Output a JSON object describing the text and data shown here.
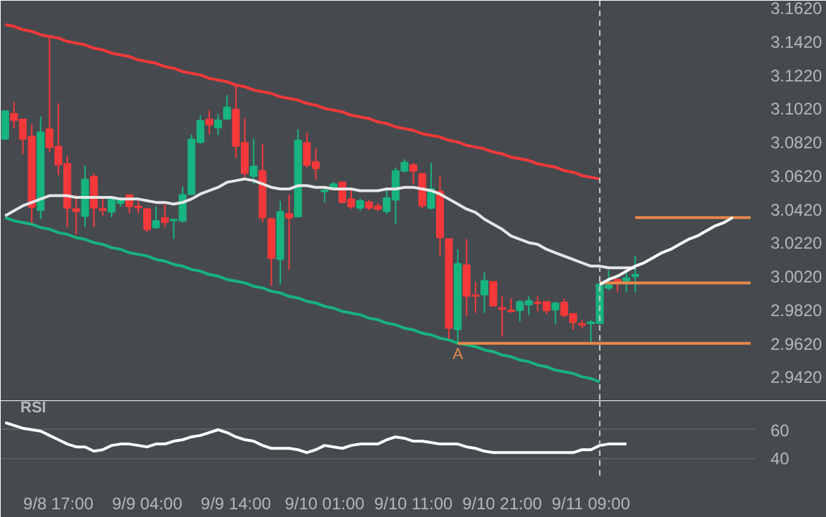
{
  "chart_data": [
    {
      "type": "candlestick",
      "tick_labels": "y",
      "grid": false,
      "categories": [
        null,
        null,
        null,
        null,
        null,
        null,
        null,
        null,
        null,
        null,
        null,
        null,
        null,
        null,
        null,
        null,
        null,
        null,
        null,
        null,
        null,
        null,
        null,
        null,
        null,
        null,
        null,
        null,
        null,
        null,
        null,
        null,
        null,
        null,
        null,
        null,
        null,
        null,
        null,
        null,
        null,
        null,
        null,
        null,
        null,
        null,
        null,
        null,
        null,
        null,
        null,
        null,
        null,
        null,
        null,
        null,
        null,
        null,
        null,
        null,
        null,
        null,
        null,
        null,
        null,
        null,
        null,
        null,
        null,
        null,
        null,
        null,
        null,
        null,
        null,
        null,
        null,
        null,
        null,
        null,
        null,
        null,
        null,
        null,
        null
      ],
      "ohlc": [
        [
          3.0839,
          3.1009,
          3.0839,
          3.1004
        ],
        [
          3.0989,
          3.1058,
          3.0901,
          3.095
        ],
        [
          3.0955,
          3.0955,
          3.0748,
          3.0839
        ],
        [
          3.0853,
          3.0924,
          3.0327,
          3.0432
        ],
        [
          3.0413,
          3.0972,
          3.0361,
          3.0879
        ],
        [
          3.0896,
          3.1456,
          3.0759,
          3.0788
        ],
        [
          3.0793,
          3.1052,
          3.0623,
          3.0685
        ],
        [
          3.0691,
          3.0739,
          3.0313,
          3.0427
        ],
        [
          3.0421,
          3.0506,
          3.027,
          3.0407
        ],
        [
          3.0378,
          3.068,
          3.0313,
          3.0597
        ],
        [
          3.0614,
          3.0631,
          3.0313,
          3.0427
        ],
        [
          3.0421,
          3.0498,
          3.0381,
          3.0413
        ],
        [
          3.0404,
          3.0492,
          3.037,
          3.0481
        ],
        [
          3.0455,
          3.0492,
          3.0435,
          3.0475
        ],
        [
          3.0504,
          3.0504,
          3.0395,
          3.0435
        ],
        [
          3.0435,
          3.0481,
          3.0395,
          3.0429
        ],
        [
          3.0421,
          3.0421,
          3.0285,
          3.0299
        ],
        [
          3.031,
          3.0435,
          3.0304,
          3.035
        ],
        [
          3.0367,
          3.045,
          3.0313,
          3.0341
        ],
        [
          3.0353,
          3.0358,
          3.0242,
          3.0358
        ],
        [
          3.035,
          3.0555,
          3.0341,
          3.0506
        ],
        [
          3.0509,
          3.0867,
          3.0504,
          3.0836
        ],
        [
          3.0819,
          3.0981,
          3.081,
          3.0947
        ],
        [
          3.0955,
          3.1009,
          3.0867,
          3.0924
        ],
        [
          3.0907,
          3.0987,
          3.0862,
          3.095
        ],
        [
          3.0958,
          3.11,
          3.0952,
          3.1026
        ],
        [
          3.1015,
          3.116,
          3.0725,
          3.0796
        ],
        [
          3.0816,
          3.0961,
          3.0611,
          3.0634
        ],
        [
          3.0617,
          3.0839,
          3.0569,
          3.0674
        ],
        [
          3.0648,
          3.081,
          3.0341,
          3.037
        ],
        [
          3.0361,
          3.037,
          2.9963,
          3.0128
        ],
        [
          3.012,
          3.0469,
          2.9972,
          3.0404
        ],
        [
          3.0393,
          3.0506,
          3.0057,
          3.037
        ],
        [
          3.0376,
          3.0896,
          3.037,
          3.083
        ],
        [
          3.0816,
          3.0876,
          3.0668,
          3.0683
        ],
        [
          3.0702,
          3.0782,
          3.0597,
          3.0663
        ],
        [
          3.0526,
          3.0546,
          3.0461,
          3.0532
        ],
        [
          3.054,
          3.0583,
          3.0532,
          3.0569
        ],
        [
          3.058,
          3.058,
          3.0455,
          3.0461
        ],
        [
          3.0478,
          3.0535,
          3.0421,
          3.0435
        ],
        [
          3.0427,
          3.0484,
          3.0407,
          3.0469
        ],
        [
          3.0461,
          3.0475,
          3.0413,
          3.0427
        ],
        [
          3.0438,
          3.0455,
          3.0407,
          3.0421
        ],
        [
          3.0407,
          3.054,
          3.039,
          3.0486
        ],
        [
          3.0475,
          3.0668,
          3.0333,
          3.0648
        ],
        [
          3.0648,
          3.0717,
          3.064,
          3.0697
        ],
        [
          3.0683,
          3.0697,
          3.0569,
          3.0648
        ],
        [
          3.0631,
          3.0631,
          3.0427,
          3.0441
        ],
        [
          3.0427,
          3.0697,
          3.0418,
          3.054
        ],
        [
          3.0526,
          3.062,
          3.0142,
          3.0251
        ],
        [
          3.0242,
          3.0242,
          2.9645,
          2.9711
        ],
        [
          2.9702,
          3.0179,
          2.9617,
          3.0094
        ],
        [
          3.0086,
          3.0242,
          2.9782,
          2.9901
        ],
        [
          2.9907,
          2.9986,
          2.9801,
          2.9901
        ],
        [
          2.991,
          3.0043,
          2.9801,
          2.9992
        ],
        [
          2.9986,
          2.9986,
          2.9838,
          2.9844
        ],
        [
          2.983,
          2.9901,
          2.9659,
          2.9824
        ],
        [
          2.9816,
          2.9887,
          2.9801,
          2.981
        ],
        [
          2.9816,
          2.9878,
          2.975,
          2.9867
        ],
        [
          2.985,
          2.9901,
          2.9787,
          2.9873
        ],
        [
          2.9864,
          2.9901,
          2.981,
          2.9858
        ],
        [
          2.9867,
          2.9867,
          2.9793,
          2.9816
        ],
        [
          2.9821,
          2.9867,
          2.9736,
          2.9858
        ],
        [
          2.9864,
          2.9887,
          2.9773,
          2.9787
        ],
        [
          2.9796,
          2.9796,
          2.9702,
          2.9745
        ],
        [
          2.9736,
          2.9759,
          2.9708,
          2.973
        ],
        [
          2.9739,
          2.9759,
          2.9625,
          2.9745
        ],
        [
          2.9739,
          2.9972,
          2.9739,
          2.9972
        ],
        [
          2.9949,
          3.0057,
          2.9935,
          2.9966
        ],
        [
          3.0,
          3.0,
          2.9924,
          2.9986
        ],
        [
          2.9992,
          3.0043,
          2.9924,
          3.0009
        ],
        [
          3.002,
          3.0142,
          2.9924,
          3.0029
        ],
        null,
        null,
        null,
        null,
        null,
        null,
        null,
        null,
        null,
        null,
        null,
        null,
        null
      ],
      "colors": [
        "#17b47f",
        "#f5393a",
        "#f5393a",
        "#f5393a",
        "#17b47f",
        "#f5393a",
        "#f5393a",
        "#f5393a",
        "#f5393a",
        "#17b47f",
        "#f5393a",
        "#f5393a",
        "#17b47f",
        "#17b47f",
        "#f5393a",
        "#f5393a",
        "#f5393a",
        "#17b47f",
        "#f5393a",
        "#17b47f",
        "#17b47f",
        "#17b47f",
        "#17b47f",
        "#f5393a",
        "#17b47f",
        "#17b47f",
        "#f5393a",
        "#f5393a",
        "#17b47f",
        "#f5393a",
        "#f5393a",
        "#17b47f",
        "#f5393a",
        "#17b47f",
        "#f5393a",
        "#f5393a",
        "#17b47f",
        "#17b47f",
        "#f5393a",
        "#f5393a",
        "#17b47f",
        "#f5393a",
        "#f5393a",
        "#17b47f",
        "#17b47f",
        "#17b47f",
        "#f5393a",
        "#f5393a",
        "#17b47f",
        "#f5393a",
        "#f5393a",
        "#17b47f",
        "#f5393a",
        "#f5393a",
        "#17b47f",
        "#f5393a",
        "#f5393a",
        "#f5393a",
        "#17b47f",
        "#17b47f",
        "#f5393a",
        "#f5393a",
        "#17b47f",
        "#f5393a",
        "#f5393a",
        "#f5393a",
        "#17b47f",
        "#17b47f",
        "#17b47f",
        "#f5393a",
        "#17b47f",
        "#17b47f",
        null,
        null,
        null,
        null,
        null,
        null,
        null,
        null,
        null,
        null,
        null,
        null,
        null
      ],
      "series": [
        {
          "type": "line",
          "color": "#f5393a",
          "values": [
            3.152,
            3.151,
            3.149,
            3.148,
            3.146,
            3.145,
            3.144,
            3.142,
            3.141,
            3.14,
            3.138,
            3.137,
            3.135,
            3.134,
            3.133,
            3.131,
            3.13,
            3.129,
            3.127,
            3.126,
            3.124,
            3.123,
            3.122,
            3.12,
            3.119,
            3.118,
            3.116,
            3.115,
            3.113,
            3.112,
            3.111,
            3.109,
            3.108,
            3.107,
            3.105,
            3.104,
            3.102,
            3.101,
            3.1,
            3.098,
            3.097,
            3.096,
            3.094,
            3.093,
            3.091,
            3.09,
            3.089,
            3.087,
            3.086,
            3.085,
            3.083,
            3.082,
            3.08,
            3.079,
            3.078,
            3.076,
            3.075,
            3.073,
            3.072,
            3.071,
            3.069,
            3.068,
            3.067,
            3.065,
            3.064,
            3.062,
            3.061,
            3.06,
            null,
            null,
            null,
            null,
            null,
            null,
            null,
            null,
            null,
            null,
            null,
            null,
            null,
            null,
            null,
            null,
            null
          ]
        },
        {
          "type": "line",
          "color": "#17b47f",
          "values": [
            3.037,
            3.035,
            3.034,
            3.033,
            3.031,
            3.03,
            3.028,
            3.027,
            3.025,
            3.024,
            3.022,
            3.021,
            3.019,
            3.018,
            3.016,
            3.015,
            3.014,
            3.012,
            3.011,
            3.009,
            3.008,
            3.006,
            3.005,
            3.003,
            3.002,
            3.0,
            2.999,
            2.998,
            2.996,
            2.995,
            2.993,
            2.992,
            2.99,
            2.989,
            2.987,
            2.986,
            2.984,
            2.983,
            2.981,
            2.98,
            2.979,
            2.977,
            2.976,
            2.974,
            2.973,
            2.971,
            2.97,
            2.968,
            2.967,
            2.965,
            2.964,
            2.962,
            2.961,
            2.96,
            2.958,
            2.957,
            2.955,
            2.954,
            2.952,
            2.951,
            2.949,
            2.948,
            2.946,
            2.945,
            2.944,
            2.942,
            2.941,
            2.939,
            null,
            null,
            null,
            null,
            null,
            null,
            null,
            null,
            null,
            null,
            null,
            null,
            null,
            null,
            null,
            null,
            null
          ]
        },
        {
          "type": "line",
          "color": "#e6e6e6",
          "values": [
            3.038,
            3.041,
            3.044,
            3.046,
            3.048,
            3.05,
            3.05,
            3.05,
            3.049,
            3.049,
            3.049,
            3.049,
            3.049,
            3.048,
            3.048,
            3.048,
            3.047,
            3.046,
            3.046,
            3.045,
            3.046,
            3.048,
            3.051,
            3.053,
            3.055,
            3.058,
            3.059,
            3.06,
            3.059,
            3.057,
            3.055,
            3.054,
            3.054,
            3.056,
            3.056,
            3.055,
            3.055,
            3.054,
            3.054,
            3.054,
            3.053,
            3.053,
            3.053,
            3.054,
            3.054,
            3.055,
            3.055,
            3.054,
            3.053,
            3.051,
            3.048,
            3.045,
            3.042,
            3.04,
            3.036,
            3.033,
            3.03,
            3.026,
            3.024,
            3.022,
            3.021,
            3.018,
            3.016,
            3.014,
            3.012,
            3.01,
            3.008,
            3.008,
            3.007,
            3.007,
            3.007,
            3.007,
            null,
            null,
            null,
            null,
            null,
            null,
            null,
            null,
            null,
            null,
            null,
            null,
            null
          ]
        },
        {
          "type": "line",
          "color": "#e8884c",
          "values": [
            null,
            null,
            null,
            null,
            null,
            null,
            null,
            null,
            null,
            null,
            null,
            null,
            null,
            null,
            null,
            null,
            null,
            null,
            null,
            null,
            null,
            null,
            null,
            null,
            null,
            null,
            null,
            null,
            null,
            null,
            null,
            null,
            null,
            null,
            null,
            null,
            null,
            null,
            null,
            null,
            null,
            null,
            null,
            null,
            null,
            null,
            null,
            null,
            null,
            null,
            null,
            2.962,
            2.962,
            2.962,
            2.962,
            2.962,
            2.962,
            2.962,
            2.962,
            2.962,
            2.962,
            2.962,
            2.962,
            2.962,
            2.962,
            2.962,
            2.962,
            2.962,
            2.962,
            2.962,
            2.962,
            2.962,
            2.962,
            2.962,
            2.962,
            2.962,
            2.962,
            2.962,
            2.962,
            2.962,
            2.962,
            2.962,
            2.962,
            2.962,
            2.962
          ]
        },
        {
          "type": "line",
          "color": "#e8884c",
          "values": [
            null,
            null,
            null,
            null,
            null,
            null,
            null,
            null,
            null,
            null,
            null,
            null,
            null,
            null,
            null,
            null,
            null,
            null,
            null,
            null,
            null,
            null,
            null,
            null,
            null,
            null,
            null,
            null,
            null,
            null,
            null,
            null,
            null,
            null,
            null,
            null,
            null,
            null,
            null,
            null,
            null,
            null,
            null,
            null,
            null,
            null,
            null,
            null,
            null,
            null,
            null,
            null,
            null,
            null,
            null,
            null,
            null,
            null,
            null,
            null,
            null,
            null,
            null,
            null,
            null,
            null,
            null,
            2.998,
            2.998,
            2.998,
            2.998,
            2.998,
            2.998,
            2.998,
            2.998,
            2.998,
            2.998,
            2.998,
            2.998,
            2.998,
            2.998,
            2.998,
            2.998,
            2.998,
            2.998
          ]
        },
        {
          "type": "line",
          "color": "#e8884c",
          "values": [
            null,
            null,
            null,
            null,
            null,
            null,
            null,
            null,
            null,
            null,
            null,
            null,
            null,
            null,
            null,
            null,
            null,
            null,
            null,
            null,
            null,
            null,
            null,
            null,
            null,
            null,
            null,
            null,
            null,
            null,
            null,
            null,
            null,
            null,
            null,
            null,
            null,
            null,
            null,
            null,
            null,
            null,
            null,
            null,
            null,
            null,
            null,
            null,
            null,
            null,
            null,
            null,
            null,
            null,
            null,
            null,
            null,
            null,
            null,
            null,
            null,
            null,
            null,
            null,
            null,
            null,
            null,
            null,
            null,
            null,
            null,
            3.037,
            3.037,
            3.037,
            3.037,
            3.037,
            3.037,
            3.037,
            3.037,
            3.037,
            3.037,
            3.037,
            3.037,
            3.037,
            3.037
          ]
        },
        {
          "type": "line",
          "color": "#ffffff",
          "values": [
            null,
            null,
            null,
            null,
            null,
            null,
            null,
            null,
            null,
            null,
            null,
            null,
            null,
            null,
            null,
            null,
            null,
            null,
            null,
            null,
            null,
            null,
            null,
            null,
            null,
            null,
            null,
            null,
            null,
            null,
            null,
            null,
            null,
            null,
            null,
            null,
            null,
            null,
            null,
            null,
            null,
            null,
            null,
            null,
            null,
            null,
            null,
            null,
            null,
            null,
            null,
            null,
            null,
            null,
            null,
            null,
            null,
            null,
            null,
            null,
            null,
            null,
            null,
            null,
            null,
            null,
            null,
            2.997,
            3.0,
            3.002,
            3.005,
            3.008,
            3.01,
            3.013,
            3.016,
            3.018,
            3.021,
            3.024,
            3.026,
            3.029,
            3.032,
            3.034,
            3.037,
            null,
            null
          ]
        }
      ],
      "annotations": [
        {
          "text": "A",
          "y": 2.962
        }
      ],
      "ylim": [
        2.9275,
        3.1663
      ],
      "yticks": [
        {
          "value": 3.162,
          "label": "3.1620"
        },
        {
          "value": 3.142,
          "label": "3.1420"
        },
        {
          "value": 3.122,
          "label": "3.1220"
        },
        {
          "value": 3.102,
          "label": "3.1020"
        },
        {
          "value": 3.082,
          "label": "3.0820"
        },
        {
          "value": 3.062,
          "label": "3.0620"
        },
        {
          "value": 3.042,
          "label": "3.0420"
        },
        {
          "value": 3.022,
          "label": "3.0220"
        },
        {
          "value": 3.002,
          "label": "3.0020"
        },
        {
          "value": 2.982,
          "label": "2.9820"
        },
        {
          "value": 2.962,
          "label": "2.9620"
        },
        {
          "value": 2.942,
          "label": "2.9420"
        }
      ]
    },
    {
      "type": "line",
      "title": "RSI",
      "grid": "y",
      "categories": [
        null,
        null,
        null,
        null,
        null,
        null,
        "9/8 17:00",
        null,
        null,
        null,
        null,
        null,
        null,
        null,
        null,
        null,
        "9/9 04:00",
        null,
        null,
        null,
        null,
        null,
        null,
        null,
        null,
        null,
        "9/9 14:00",
        null,
        null,
        null,
        null,
        null,
        null,
        null,
        null,
        null,
        "9/10 01:00",
        null,
        null,
        null,
        null,
        null,
        null,
        null,
        null,
        null,
        "9/10 11:00",
        null,
        null,
        null,
        null,
        null,
        null,
        null,
        null,
        null,
        "9/10 21:00",
        null,
        null,
        null,
        null,
        null,
        null,
        null,
        null,
        null,
        "9/11 09:00",
        null,
        null,
        null,
        null,
        null,
        null,
        null,
        null,
        null,
        null,
        null,
        null,
        null,
        null,
        null,
        null,
        null,
        null
      ],
      "series": [
        {
          "color": "#ffffff",
          "values": [
            65,
            63,
            61,
            60,
            59,
            56,
            53,
            50,
            48,
            48,
            45,
            46,
            49,
            50,
            50,
            49,
            48,
            50,
            50,
            52,
            53,
            55,
            56,
            58,
            60,
            58,
            55,
            53,
            52,
            49,
            47,
            47,
            47,
            46,
            44,
            46,
            49,
            48,
            47,
            49,
            50,
            50,
            50,
            53,
            55,
            54,
            52,
            52,
            51,
            50,
            50,
            50,
            48,
            47,
            45,
            44,
            44,
            44,
            44,
            44,
            44,
            44,
            44,
            44,
            44,
            46,
            46,
            49,
            50,
            50,
            50,
            null,
            null,
            null,
            null,
            null,
            null,
            null,
            null,
            null,
            null,
            null,
            null,
            null,
            null
          ]
        }
      ],
      "ylim": [
        26,
        80
      ],
      "yticks": [
        40,
        60
      ]
    }
  ]
}
